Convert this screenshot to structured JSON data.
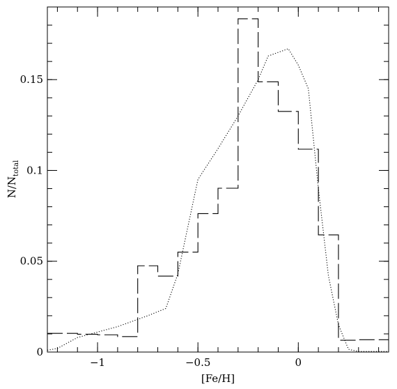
{
  "chart_data": {
    "type": "line",
    "title": "",
    "xlabel": "[Fe/H]",
    "ylabel": {
      "main": "N/N",
      "subscript": "total"
    },
    "xlim": [
      -1.25,
      0.45
    ],
    "ylim": [
      0,
      0.19
    ],
    "x_ticks": [
      {
        "value": -1,
        "label": "−1"
      },
      {
        "value": -0.5,
        "label": "−0.5"
      },
      {
        "value": 0,
        "label": "0"
      }
    ],
    "y_ticks": [
      {
        "value": 0,
        "label": "0"
      },
      {
        "value": 0.05,
        "label": "0.05"
      },
      {
        "value": 0.1,
        "label": "0.1"
      },
      {
        "value": 0.15,
        "label": "0.15"
      }
    ],
    "series": [
      {
        "style": "dashed-step",
        "color": "#000000",
        "bin_edges": [
          -1.25,
          -1.1,
          -1.0,
          -0.9,
          -0.8,
          -0.7,
          -0.6,
          -0.5,
          -0.4,
          -0.3,
          -0.2,
          -0.1,
          0.0,
          0.1,
          0.2,
          0.3,
          0.45
        ],
        "values": [
          0.0103,
          0.0098,
          0.0095,
          0.0085,
          0.0475,
          0.0418,
          0.055,
          0.0762,
          0.0902,
          0.1835,
          0.1488,
          0.1325,
          0.1117,
          0.0645,
          0.0065,
          0.0068
        ]
      },
      {
        "style": "dotted",
        "color": "#000000",
        "x": [
          -1.25,
          -1.2,
          -1.1,
          -1.0,
          -0.9,
          -0.8,
          -0.75,
          -0.66,
          -0.6,
          -0.5,
          -0.4,
          -0.3,
          -0.2,
          -0.15,
          -0.05,
          0.0,
          0.05,
          0.1,
          0.15,
          0.2,
          0.25,
          0.3,
          0.45
        ],
        "y": [
          0.001,
          0.002,
          0.008,
          0.011,
          0.014,
          0.018,
          0.02,
          0.024,
          0.043,
          0.095,
          0.112,
          0.13,
          0.15,
          0.163,
          0.167,
          0.158,
          0.145,
          0.09,
          0.042,
          0.015,
          0.0015,
          0.0003,
          0.0003
        ]
      }
    ]
  }
}
